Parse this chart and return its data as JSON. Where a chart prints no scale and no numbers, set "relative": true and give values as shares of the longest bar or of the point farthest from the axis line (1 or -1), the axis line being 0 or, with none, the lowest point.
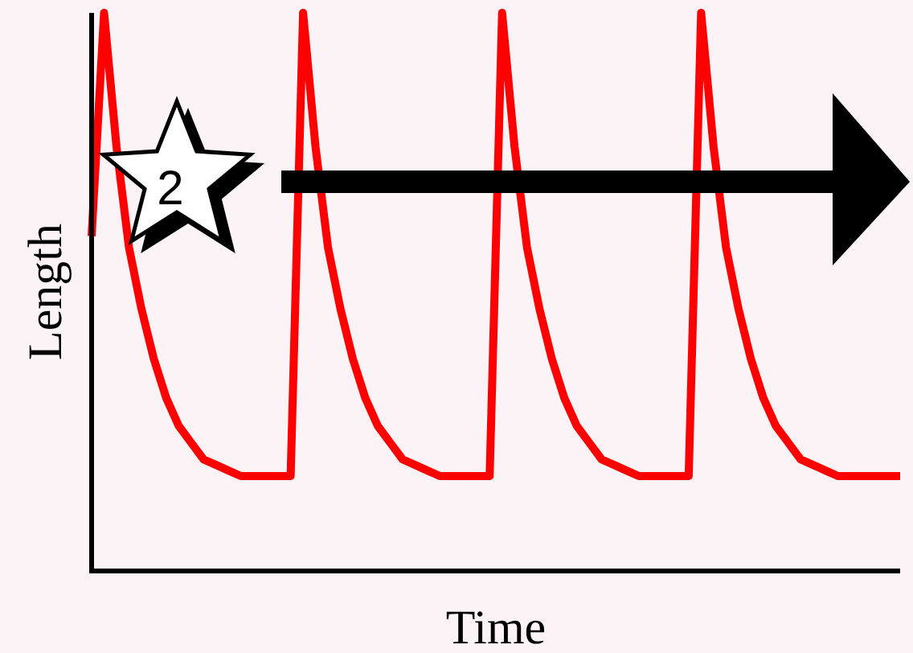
{
  "chart_data": {
    "type": "line",
    "relative": true,
    "xlabel": "Time",
    "ylabel": "Length",
    "annotations": [
      "2"
    ],
    "categories": [
      null,
      null,
      null,
      null,
      null,
      null,
      null,
      null,
      null,
      null,
      null,
      null,
      null,
      null,
      null,
      null,
      null,
      null,
      null,
      null,
      null,
      null,
      null,
      null,
      null,
      null,
      null,
      null,
      null,
      null,
      null,
      null,
      null,
      null,
      null,
      null,
      null,
      null,
      null,
      null,
      null,
      null,
      null,
      null,
      null,
      null,
      null,
      null,
      null,
      null,
      null,
      null,
      null,
      null,
      null,
      null,
      null,
      null,
      null,
      null,
      null,
      null,
      null,
      null,
      null,
      null
    ],
    "series": [
      {
        "color": "#ff0000",
        "values": [
          0.6,
          1.0,
          0.76,
          0.58,
          0.47,
          0.38,
          0.31,
          0.26,
          0.23,
          0.2,
          0.19,
          0.18,
          0.17,
          0.17,
          0.17,
          0.17,
          0.17,
          1.0,
          0.76,
          0.58,
          0.47,
          0.38,
          0.31,
          0.26,
          0.23,
          0.2,
          0.19,
          0.18,
          0.17,
          0.17,
          0.17,
          0.17,
          0.17,
          1.0,
          0.76,
          0.58,
          0.47,
          0.38,
          0.31,
          0.26,
          0.23,
          0.2,
          0.19,
          0.18,
          0.17,
          0.17,
          0.17,
          0.17,
          0.17,
          1.0,
          0.76,
          0.58,
          0.47,
          0.38,
          0.31,
          0.26,
          0.23,
          0.2,
          0.19,
          0.18,
          0.17,
          0.17,
          0.17,
          0.17,
          0.17,
          0.17
        ]
      }
    ]
  }
}
